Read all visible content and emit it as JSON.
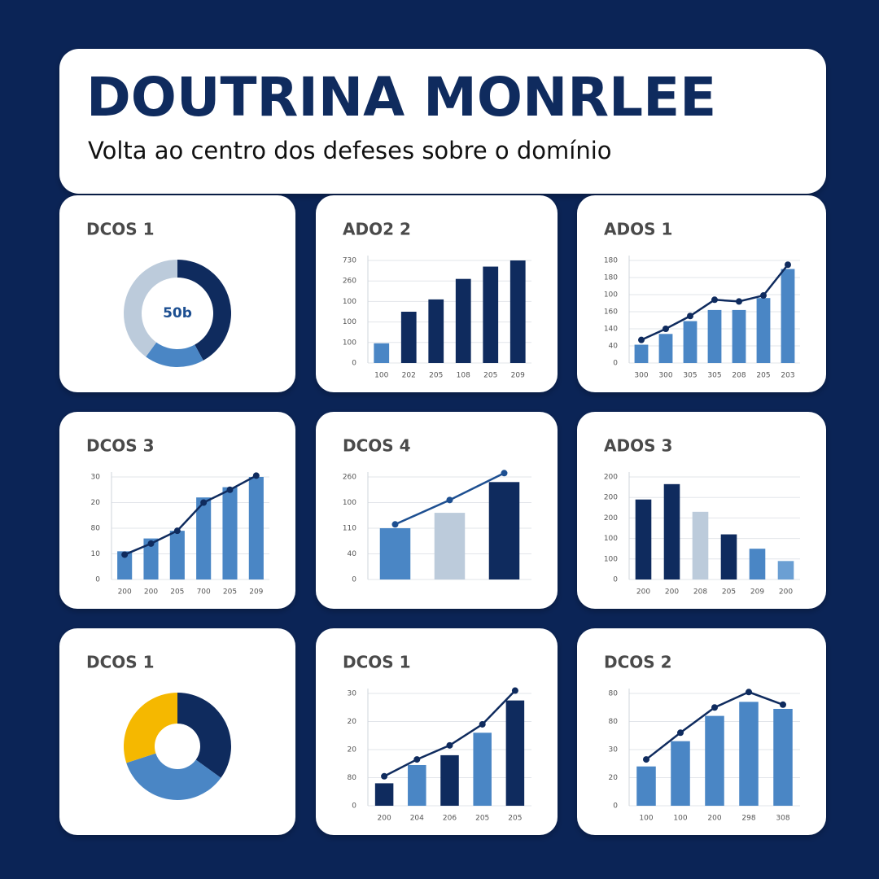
{
  "header": {
    "title": "DOUTRINA MONRLEE",
    "subtitle": "Volta ao centro dos defeses sobre o domínio"
  },
  "chart_data": [
    {
      "type": "donut",
      "title": "DCOS 1",
      "values": [
        42,
        18,
        40
      ],
      "colors": [
        "#0f2b5e",
        "#4a86c5",
        "#bccbdb"
      ],
      "center_label": "50b"
    },
    {
      "type": "bar",
      "title": "ADO2 2",
      "categories": [
        "100",
        "202",
        "205",
        "108",
        "205",
        "209"
      ],
      "ylim": [
        0,
        5
      ],
      "yticks": [
        {
          "value": 0,
          "label": "0"
        },
        {
          "value": 1,
          "label": "100"
        },
        {
          "value": 2,
          "label": "100"
        },
        {
          "value": 3,
          "label": "100"
        },
        {
          "value": 4,
          "label": "260"
        },
        {
          "value": 5,
          "label": "730"
        }
      ],
      "grid": true,
      "series": [
        {
          "type": "bar",
          "values": [
            0.96,
            2.5,
            3.1,
            4.1,
            4.7,
            5.0
          ],
          "colors": [
            "#4a86c5",
            "#0f2b5e",
            "#0f2b5e",
            "#0f2b5e",
            "#0f2b5e",
            "#0f2b5e"
          ]
        }
      ]
    },
    {
      "type": "bar",
      "title": "ADOS 1",
      "categories": [
        "300",
        "300",
        "305",
        "305",
        "208",
        "205",
        "203"
      ],
      "ylim": [
        0,
        6
      ],
      "yticks": [
        {
          "value": 0,
          "label": "0"
        },
        {
          "value": 1,
          "label": "40"
        },
        {
          "value": 2,
          "label": "140"
        },
        {
          "value": 3,
          "label": "160"
        },
        {
          "value": 4,
          "label": "100"
        },
        {
          "value": 5,
          "label": "180"
        },
        {
          "value": 6,
          "label": "180"
        }
      ],
      "grid": true,
      "series": [
        {
          "type": "bar",
          "values": [
            1.07,
            1.7,
            2.45,
            3.1,
            3.1,
            3.8,
            5.5
          ],
          "color": "#4a86c5"
        },
        {
          "type": "line",
          "values": [
            1.35,
            2.0,
            2.75,
            3.7,
            3.6,
            3.95,
            5.75
          ],
          "color": "#0f2b5e"
        }
      ]
    },
    {
      "type": "bar",
      "title": "DCOS 3",
      "categories": [
        "200",
        "200",
        "205",
        "700",
        "205",
        "209"
      ],
      "ylim": [
        0,
        4
      ],
      "yticks": [
        {
          "value": 0,
          "label": "0"
        },
        {
          "value": 1,
          "label": "10"
        },
        {
          "value": 2,
          "label": "80"
        },
        {
          "value": 3,
          "label": "20"
        },
        {
          "value": 4,
          "label": "30"
        }
      ],
      "grid": true,
      "series": [
        {
          "type": "bar",
          "values": [
            1.1,
            1.6,
            1.9,
            3.2,
            3.6,
            4.0
          ],
          "color": "#4a86c5"
        },
        {
          "type": "line",
          "values": [
            0.97,
            1.4,
            1.9,
            3.0,
            3.5,
            4.05
          ],
          "color": "#0f2b5e"
        }
      ]
    },
    {
      "type": "bar",
      "title": "DCOS 4",
      "categories": [
        null,
        null,
        null
      ],
      "ylim": [
        0,
        4
      ],
      "yticks": [
        {
          "value": 0,
          "label": "0"
        },
        {
          "value": 1,
          "label": "40"
        },
        {
          "value": 2,
          "label": "110"
        },
        {
          "value": 3,
          "label": "100"
        },
        {
          "value": 4,
          "label": "260"
        }
      ],
      "grid": true,
      "series": [
        {
          "type": "bar",
          "values": [
            2.0,
            2.6,
            3.8
          ],
          "colors": [
            "#4a86c5",
            "#bccbdb",
            "#0f2b5e"
          ]
        },
        {
          "type": "line",
          "values": [
            2.15,
            3.1,
            4.15
          ],
          "color": "#1d4f91"
        }
      ]
    },
    {
      "type": "bar",
      "title": "ADOS 3",
      "categories": [
        "200",
        "200",
        "208",
        "205",
        "209",
        "200"
      ],
      "ylim": [
        0,
        5
      ],
      "yticks": [
        {
          "value": 0,
          "label": "0"
        },
        {
          "value": 1,
          "label": "100"
        },
        {
          "value": 2,
          "label": "100"
        },
        {
          "value": 3,
          "label": "200"
        },
        {
          "value": 4,
          "label": "200"
        },
        {
          "value": 5,
          "label": "200"
        }
      ],
      "grid": true,
      "series": [
        {
          "type": "bar",
          "values": [
            3.9,
            4.65,
            3.3,
            2.2,
            1.5,
            0.9
          ],
          "colors": [
            "#0f2b5e",
            "#0f2b5e",
            "#bccbdb",
            "#0f2b5e",
            "#4a86c5",
            "#6b9fd3"
          ]
        }
      ]
    },
    {
      "type": "donut",
      "title": "DCOS 1",
      "values": [
        35,
        35,
        30
      ],
      "colors": [
        "#0f2b5e",
        "#4a86c5",
        "#f5b800"
      ]
    },
    {
      "type": "bar",
      "title": "DCOS 1",
      "categories": [
        "200",
        "204",
        "206",
        "205",
        "205"
      ],
      "ylim": [
        0,
        4
      ],
      "yticks": [
        {
          "value": 0,
          "label": "0"
        },
        {
          "value": 1,
          "label": "80"
        },
        {
          "value": 2,
          "label": "20"
        },
        {
          "value": 3,
          "label": "20"
        },
        {
          "value": 4,
          "label": "30"
        }
      ],
      "grid": true,
      "series": [
        {
          "type": "bar",
          "values": [
            0.8,
            1.45,
            1.8,
            2.6,
            3.75
          ],
          "colors": [
            "#0f2b5e",
            "#4a86c5",
            "#0f2b5e",
            "#4a86c5",
            "#0f2b5e"
          ]
        },
        {
          "type": "line",
          "values": [
            1.05,
            1.65,
            2.15,
            2.9,
            4.1
          ],
          "color": "#0f2b5e"
        }
      ]
    },
    {
      "type": "bar",
      "title": "DCOS 2",
      "categories": [
        "100",
        "100",
        "200",
        "298",
        "308"
      ],
      "ylim": [
        0,
        4
      ],
      "yticks": [
        {
          "value": 0,
          "label": "0"
        },
        {
          "value": 1,
          "label": "20"
        },
        {
          "value": 2,
          "label": "30"
        },
        {
          "value": 3,
          "label": "80"
        },
        {
          "value": 4,
          "label": "80"
        }
      ],
      "grid": true,
      "series": [
        {
          "type": "bar",
          "values": [
            1.4,
            2.3,
            3.2,
            3.7,
            3.45
          ],
          "color": "#4a86c5"
        },
        {
          "type": "line",
          "values": [
            1.65,
            2.6,
            3.5,
            4.05,
            3.6
          ],
          "color": "#0f2b5e"
        }
      ]
    }
  ]
}
